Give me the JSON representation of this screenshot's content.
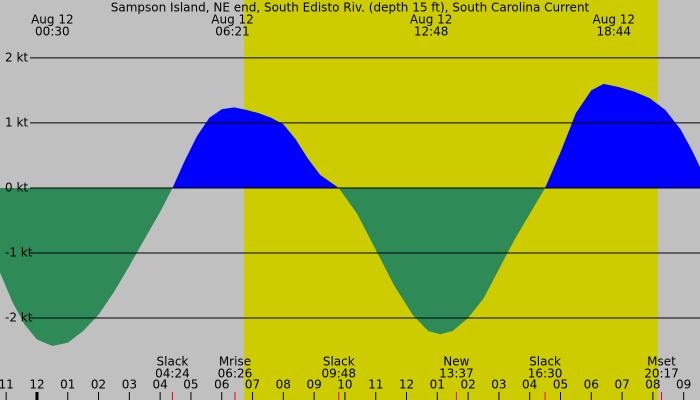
{
  "chart_data": {
    "type": "area",
    "title": "Sampson Island, NE end, South Edisto Riv. (depth 15 ft), South Carolina Current",
    "x": [
      -1.2,
      -0.8,
      -0.4,
      0.0,
      0.5,
      1.0,
      1.5,
      2.0,
      2.5,
      3.0,
      3.5,
      4.0,
      4.4,
      4.8,
      5.2,
      5.6,
      6.0,
      6.4,
      6.8,
      7.2,
      7.6,
      8.0,
      8.4,
      8.8,
      9.2,
      9.8,
      10.4,
      11.0,
      11.6,
      12.2,
      12.7,
      13.1,
      13.5,
      14.0,
      14.5,
      15.0,
      15.5,
      16.0,
      16.5,
      17.0,
      17.5,
      18.0,
      18.4,
      18.9,
      19.4,
      19.9,
      20.4,
      20.9,
      21.3,
      21.53
    ],
    "values": [
      -1.3,
      -1.75,
      -2.1,
      -2.33,
      -2.43,
      -2.38,
      -2.2,
      -1.95,
      -1.6,
      -1.2,
      -0.78,
      -0.37,
      0,
      0.42,
      0.8,
      1.08,
      1.21,
      1.24,
      1.2,
      1.15,
      1.08,
      0.98,
      0.75,
      0.45,
      0.2,
      0,
      -0.4,
      -0.95,
      -1.5,
      -1.95,
      -2.2,
      -2.25,
      -2.2,
      -2.0,
      -1.7,
      -1.25,
      -0.8,
      -0.4,
      0,
      0.55,
      1.15,
      1.5,
      1.6,
      1.55,
      1.48,
      1.38,
      1.2,
      0.9,
      0.55,
      0.32
    ],
    "flood_color": "#0000ff",
    "ebb_color": "#2e8b57",
    "night_color": "#c0c0c0",
    "day_color": "#cccc00",
    "daylight": [
      6.72,
      20.16
    ],
    "xlim": [
      -1.2,
      21.53
    ],
    "ylim": [
      -3.26,
      2.89
    ],
    "yticks": [
      {
        "value": 2,
        "label": "2 kt"
      },
      {
        "value": 1,
        "label": "1 kt"
      },
      {
        "value": 0,
        "label": "0 kt"
      },
      {
        "value": -1,
        "label": "-1 kt"
      },
      {
        "value": -2,
        "label": "-2 kt"
      }
    ],
    "xticks": [
      {
        "value": -1,
        "label": "11"
      },
      {
        "value": 0,
        "label": "12"
      },
      {
        "value": 1,
        "label": "01"
      },
      {
        "value": 2,
        "label": "02"
      },
      {
        "value": 3,
        "label": "03"
      },
      {
        "value": 4,
        "label": "04"
      },
      {
        "value": 5,
        "label": "05"
      },
      {
        "value": 6,
        "label": "06"
      },
      {
        "value": 7,
        "label": "07"
      },
      {
        "value": 8,
        "label": "08"
      },
      {
        "value": 9,
        "label": "09"
      },
      {
        "value": 10,
        "label": "10"
      },
      {
        "value": 11,
        "label": "11"
      },
      {
        "value": 12,
        "label": "12"
      },
      {
        "value": 13,
        "label": "01"
      },
      {
        "value": 14,
        "label": "02"
      },
      {
        "value": 15,
        "label": "03"
      },
      {
        "value": 16,
        "label": "04"
      },
      {
        "value": 17,
        "label": "05"
      },
      {
        "value": 18,
        "label": "06"
      },
      {
        "value": 19,
        "label": "07"
      },
      {
        "value": 20,
        "label": "08"
      },
      {
        "value": 21,
        "label": "09"
      }
    ],
    "extremes": [
      {
        "value": 0.5,
        "date": "Aug 12",
        "label": "00:30"
      },
      {
        "value": 6.35,
        "date": "Aug 12",
        "label": "06:21"
      },
      {
        "value": 12.8,
        "date": "Aug 12",
        "label": "12:48"
      },
      {
        "value": 18.73,
        "date": "Aug 12",
        "label": "18:44"
      }
    ],
    "events": [
      {
        "value": 4.4,
        "name": "Slack",
        "label": "04:24"
      },
      {
        "value": 6.43,
        "name": "Mrise",
        "label": "06:26"
      },
      {
        "value": 9.8,
        "name": "Slack",
        "label": "09:48"
      },
      {
        "value": 13.62,
        "name": "New",
        "label": "13:37"
      },
      {
        "value": 16.5,
        "name": "Slack",
        "label": "16:30"
      },
      {
        "value": 20.28,
        "name": "Mset",
        "label": "20:17"
      }
    ],
    "event_color": "#ff0000"
  }
}
